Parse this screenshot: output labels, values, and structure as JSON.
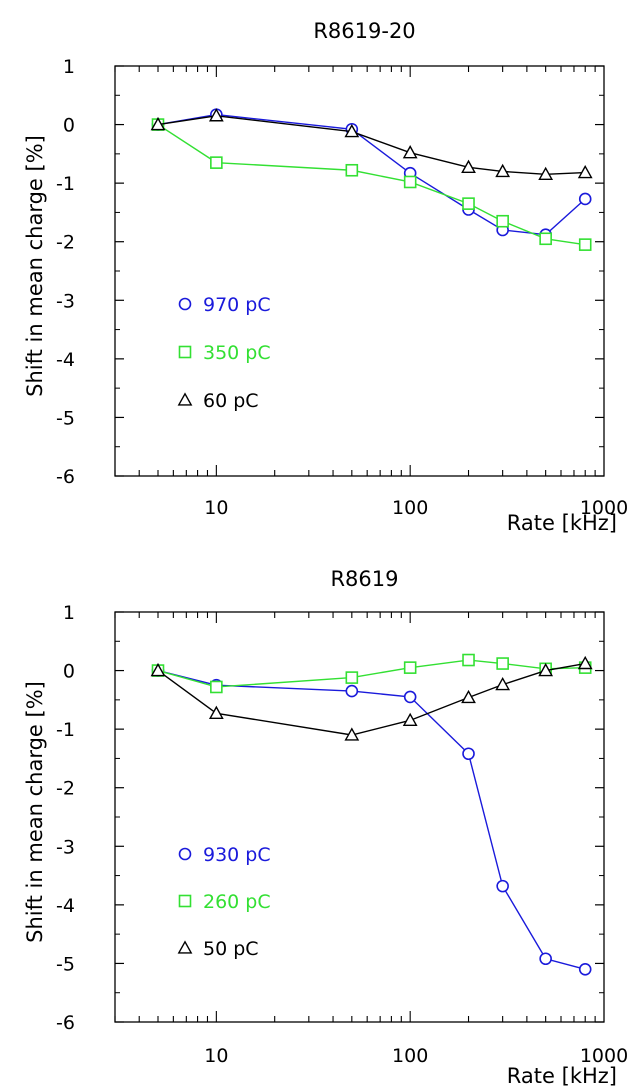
{
  "chart_data": [
    {
      "type": "line",
      "title": "R8619-20",
      "xlabel": "Rate [kHz]",
      "ylabel": "Shift in mean charge [%]",
      "xscale": "log",
      "xlim": [
        3,
        1000
      ],
      "ylim": [
        -6,
        1
      ],
      "xticks": [
        10,
        100,
        1000
      ],
      "xtick_labels": [
        "10",
        "100",
        "1000"
      ],
      "yticks": [
        1,
        0,
        -1,
        -2,
        -3,
        -4,
        -5,
        -6
      ],
      "ytick_labels": [
        "1",
        "0",
        "-1",
        "-2",
        "-3",
        "-4",
        "-5",
        "-6"
      ],
      "grid": false,
      "legend_position": "lower-left",
      "series": [
        {
          "name": "970 pC",
          "color": "#1a1adb",
          "marker": "circle",
          "x": [
            5,
            10,
            50,
            100,
            200,
            300,
            500,
            800
          ],
          "y": [
            0.0,
            0.17,
            -0.08,
            -0.83,
            -1.45,
            -1.8,
            -1.88,
            -1.27
          ]
        },
        {
          "name": "350 pC",
          "color": "#33e033",
          "marker": "square",
          "x": [
            5,
            10,
            50,
            100,
            200,
            300,
            500,
            800
          ],
          "y": [
            0.0,
            -0.65,
            -0.78,
            -0.98,
            -1.35,
            -1.65,
            -1.95,
            -2.05
          ]
        },
        {
          "name": "60 pC",
          "color": "#000000",
          "marker": "triangle",
          "x": [
            5,
            10,
            50,
            100,
            200,
            300,
            500,
            800
          ],
          "y": [
            0.0,
            0.15,
            -0.12,
            -0.48,
            -0.73,
            -0.8,
            -0.85,
            -0.82
          ]
        }
      ]
    },
    {
      "type": "line",
      "title": "R8619",
      "xlabel": "Rate [kHz]",
      "ylabel": "Shift in mean charge [%]",
      "xscale": "log",
      "xlim": [
        3,
        1000
      ],
      "ylim": [
        -6,
        1
      ],
      "xticks": [
        10,
        100,
        1000
      ],
      "xtick_labels": [
        "10",
        "100",
        "1000"
      ],
      "yticks": [
        1,
        0,
        -1,
        -2,
        -3,
        -4,
        -5,
        -6
      ],
      "ytick_labels": [
        "1",
        "0",
        "-1",
        "-2",
        "-3",
        "-4",
        "-5",
        "-6"
      ],
      "grid": false,
      "legend_position": "lower-left",
      "series": [
        {
          "name": "930 pC",
          "color": "#1a1adb",
          "marker": "circle",
          "x": [
            5,
            10,
            50,
            100,
            200,
            300,
            500,
            800
          ],
          "y": [
            0.0,
            -0.25,
            -0.35,
            -0.45,
            -1.42,
            -3.68,
            -4.92,
            -5.1
          ]
        },
        {
          "name": "260 pC",
          "color": "#33e033",
          "marker": "square",
          "x": [
            5,
            10,
            50,
            100,
            200,
            300,
            500,
            800
          ],
          "y": [
            0.0,
            -0.28,
            -0.12,
            0.05,
            0.18,
            0.12,
            0.03,
            0.05
          ]
        },
        {
          "name": "50 pC",
          "color": "#000000",
          "marker": "triangle",
          "x": [
            5,
            10,
            50,
            100,
            200,
            300,
            500,
            800
          ],
          "y": [
            0.0,
            -0.73,
            -1.1,
            -0.85,
            -0.46,
            -0.24,
            0.0,
            0.12
          ]
        }
      ]
    }
  ]
}
